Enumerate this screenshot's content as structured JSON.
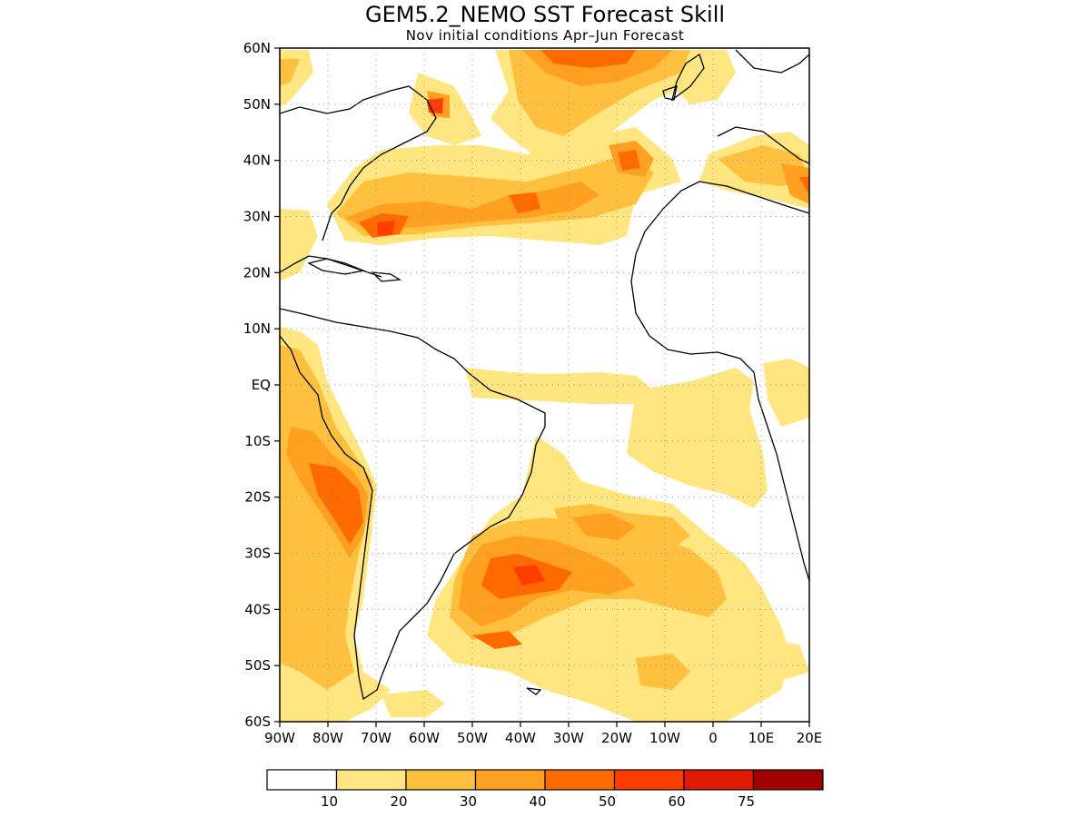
{
  "title": "GEM5.2_NEMO SST Forecast Skill",
  "subtitle": "Nov initial conditions  Apr–Jun Forecast",
  "map": {
    "lon_range": [
      -90,
      20
    ],
    "lat_range": [
      -60,
      60
    ],
    "lat_labels": [
      "60N",
      "50N",
      "40N",
      "30N",
      "20N",
      "10N",
      "EQ",
      "10S",
      "20S",
      "30S",
      "40S",
      "50S",
      "60S"
    ],
    "lon_labels": [
      "90W",
      "80W",
      "70W",
      "60W",
      "50W",
      "40W",
      "30W",
      "20W",
      "10W",
      "0",
      "10E",
      "20E"
    ],
    "grid": "dotted"
  },
  "colorbar": {
    "labels": [
      "10",
      "20",
      "30",
      "40",
      "50",
      "60",
      "75"
    ],
    "colors": [
      "#ffffff",
      "#ffe680",
      "#ffc040",
      "#ffa020",
      "#ff6a00",
      "#ff3c00",
      "#e01a00",
      "#a00000"
    ]
  }
}
